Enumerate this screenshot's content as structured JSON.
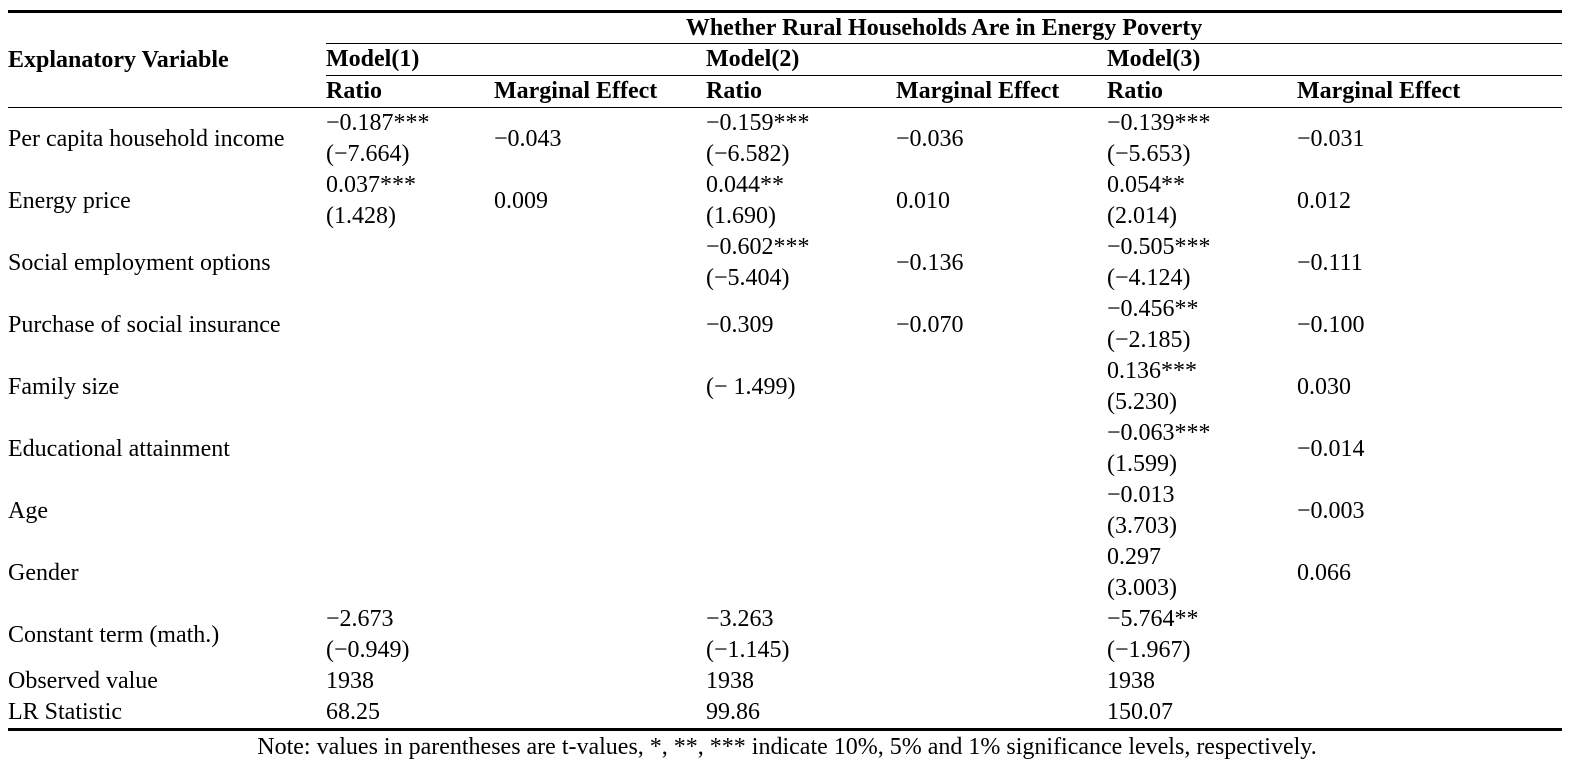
{
  "table": {
    "title": "Whether Rural Households Are in Energy Poverty",
    "explanatory_header": "Explanatory Variable",
    "models": [
      "Model(1)",
      "Model(2)",
      "Model(3)"
    ],
    "sub_headers": [
      "Ratio",
      "Marginal Effect",
      "Ratio",
      "Marginal Effect",
      "Ratio",
      "Marginal Effect"
    ],
    "rows": [
      {
        "name": "Per capita household income",
        "cells": [
          [
            "−0.187***",
            "(−7.664)"
          ],
          [
            "−0.043"
          ],
          [
            "−0.159***",
            "(−6.582)"
          ],
          [
            "−0.036"
          ],
          [
            "−0.139***",
            "(−5.653)"
          ],
          [
            "−0.031"
          ]
        ]
      },
      {
        "name": "Energy price",
        "cells": [
          [
            "0.037***",
            "(1.428)"
          ],
          [
            "0.009"
          ],
          [
            "0.044**",
            "(1.690)"
          ],
          [
            "0.010"
          ],
          [
            "0.054**",
            "(2.014)"
          ],
          [
            "0.012"
          ]
        ]
      },
      {
        "name": "Social employment options",
        "cells": [
          [],
          [],
          [
            "−0.602***",
            "(−5.404)"
          ],
          [
            "−0.136"
          ],
          [
            "−0.505***",
            "(−4.124)"
          ],
          [
            "−0.111"
          ]
        ]
      },
      {
        "name": "Purchase of social insurance",
        "cells": [
          [],
          [],
          [
            "−0.309"
          ],
          [
            "−0.070"
          ],
          [
            "−0.456**",
            "(−2.185)"
          ],
          [
            "−0.100"
          ]
        ]
      },
      {
        "name": "Family size",
        "cells": [
          [],
          [],
          [
            "(− 1.499)"
          ],
          [],
          [
            "0.136***",
            "(5.230)"
          ],
          [
            "0.030"
          ]
        ]
      },
      {
        "name": "Educational attainment",
        "cells": [
          [],
          [],
          [],
          [],
          [
            "−0.063***",
            "(1.599)"
          ],
          [
            "−0.014"
          ]
        ]
      },
      {
        "name": "Age",
        "cells": [
          [],
          [],
          [],
          [],
          [
            "−0.013",
            "(3.703)"
          ],
          [
            "−0.003"
          ]
        ]
      },
      {
        "name": "Gender",
        "cells": [
          [],
          [],
          [],
          [],
          [
            "0.297",
            "(3.003)"
          ],
          [
            "0.066"
          ]
        ]
      },
      {
        "name": "Constant term (math.)",
        "cells": [
          [
            "−2.673",
            "(−0.949)"
          ],
          [],
          [
            "−3.263",
            "(−1.145)"
          ],
          [],
          [
            "−5.764**",
            "(−1.967)"
          ],
          []
        ]
      },
      {
        "name": "Observed value",
        "cells": [
          [
            "1938"
          ],
          [],
          [
            "1938"
          ],
          [],
          [
            "1938"
          ],
          []
        ]
      },
      {
        "name": "LR Statistic",
        "cells": [
          [
            "68.25"
          ],
          [],
          [
            "99.86"
          ],
          [],
          [
            "150.07"
          ],
          []
        ]
      }
    ],
    "note": "Note: values in parentheses are t-values, *, **, *** indicate 10%, 5% and 1% significance levels, respectively."
  }
}
